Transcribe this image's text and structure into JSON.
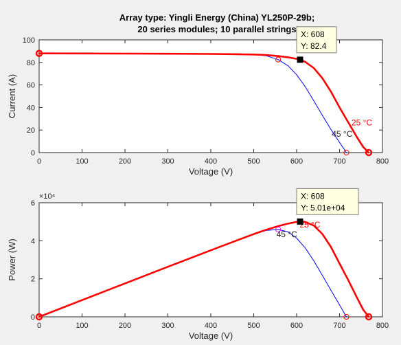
{
  "figure": {
    "title_line1": "Array type: Yingli Energy (China) YL250P-29b;",
    "title_line2": "20 series modules; 10 parallel strings"
  },
  "chart_data": [
    {
      "type": "line",
      "id": "iv",
      "title": "Array type: Yingli Energy (China) YL250P-29b; 20 series modules; 10 parallel strings",
      "xlabel": "Voltage (V)",
      "ylabel": "Current (A)",
      "xlim": [
        0,
        800
      ],
      "ylim": [
        0,
        100
      ],
      "xticks": [
        0,
        100,
        200,
        300,
        400,
        500,
        600,
        700,
        800
      ],
      "yticks": [
        0,
        20,
        40,
        60,
        80,
        100
      ],
      "grid": false,
      "series": [
        {
          "name": "25 °C",
          "color": "#ff0000",
          "width": 2.6,
          "x": [
            0,
            100,
            200,
            300,
            400,
            450,
            500,
            530,
            560,
            580,
            600,
            608,
            620,
            640,
            660,
            680,
            700,
            720,
            740,
            755,
            768
          ],
          "y": [
            88.0,
            87.9,
            87.8,
            87.7,
            87.5,
            87.3,
            87.0,
            86.5,
            85.5,
            84.5,
            83.2,
            82.4,
            80.5,
            75.0,
            66.0,
            54.0,
            40.0,
            27.0,
            14.0,
            5.0,
            0
          ]
        },
        {
          "name": "45 °C",
          "color": "#0000ff",
          "width": 1,
          "x": [
            0,
            100,
            200,
            300,
            400,
            450,
            500,
            530,
            557,
            580,
            600,
            620,
            640,
            660,
            680,
            700,
            716
          ],
          "y": [
            88.1,
            88.0,
            87.9,
            87.8,
            87.6,
            87.4,
            87.0,
            85.8,
            82.5,
            77.0,
            69.0,
            58.5,
            46.0,
            33.0,
            20.5,
            9.0,
            0
          ]
        }
      ],
      "markers": [
        {
          "shape": "circle",
          "color": "#ff0000",
          "x": 0,
          "y": 88.0,
          "bold": true
        },
        {
          "shape": "circle",
          "color": "#ff0000",
          "x": 768,
          "y": 0,
          "bold": true
        },
        {
          "shape": "circle",
          "color": "#ff0000",
          "x": 557,
          "y": 82.5,
          "bold": false
        },
        {
          "shape": "circle",
          "color": "#ff0000",
          "x": 716,
          "y": 0,
          "bold": false
        }
      ],
      "annotations": [
        {
          "text": "25 °C",
          "color": "#ff0000",
          "x": 728,
          "y": 24
        },
        {
          "text": "45 °C",
          "color": "#222222",
          "x": 682,
          "y": 14
        }
      ],
      "datatip": {
        "x": 608,
        "y": 82.4,
        "line1": "X: 608",
        "line2": "Y: 82.4"
      }
    },
    {
      "type": "line",
      "id": "pv",
      "xlabel": "Voltage (V)",
      "ylabel": "Power (W)",
      "exponent_label": "×10⁴",
      "xlim": [
        0,
        800
      ],
      "ylim": [
        0,
        6
      ],
      "xticks": [
        0,
        100,
        200,
        300,
        400,
        500,
        600,
        700,
        800
      ],
      "yticks": [
        0,
        2,
        4,
        6
      ],
      "grid": false,
      "series": [
        {
          "name": "25 °C",
          "color": "#ff0000",
          "width": 2.6,
          "x": [
            0,
            100,
            200,
            300,
            400,
            450,
            500,
            530,
            560,
            580,
            600,
            608,
            620,
            640,
            660,
            680,
            700,
            720,
            740,
            755,
            768
          ],
          "y": [
            0,
            0.879,
            1.756,
            2.631,
            3.5,
            3.929,
            4.35,
            4.585,
            4.788,
            4.901,
            4.992,
            5.01,
            4.991,
            4.8,
            4.356,
            3.672,
            2.8,
            1.944,
            1.036,
            0.378,
            0
          ]
        },
        {
          "name": "45 °C",
          "color": "#0000ff",
          "width": 1,
          "x": [
            0,
            100,
            200,
            300,
            400,
            450,
            500,
            530,
            557,
            580,
            600,
            620,
            640,
            660,
            680,
            700,
            716
          ],
          "y": [
            0,
            0.88,
            1.758,
            2.634,
            3.504,
            3.933,
            4.35,
            4.547,
            4.595,
            4.466,
            4.14,
            3.627,
            2.944,
            2.178,
            1.394,
            0.63,
            0
          ]
        }
      ],
      "markers": [
        {
          "shape": "circle",
          "color": "#ff0000",
          "x": 0,
          "y": 0,
          "bold": true
        },
        {
          "shape": "circle",
          "color": "#ff0000",
          "x": 768,
          "y": 0,
          "bold": true
        },
        {
          "shape": "circle",
          "color": "#ff00ff",
          "x": 557,
          "y": 4.595,
          "bold": false
        },
        {
          "shape": "circle",
          "color": "#ff0000",
          "x": 716,
          "y": 0,
          "bold": false
        },
        {
          "shape": "circle",
          "color": "#ff0000",
          "x": 608,
          "y": 5.01,
          "bold": false
        }
      ],
      "annotations": [
        {
          "text": "25 °C",
          "color": "#ff0000",
          "x": 607,
          "y": 4.7
        },
        {
          "text": "45 °C",
          "color": "#222222",
          "x": 553,
          "y": 4.2
        }
      ],
      "datatip": {
        "x": 608,
        "y": 5.01,
        "line1": "X: 608",
        "line2": "Y: 5.01e+04"
      }
    }
  ]
}
